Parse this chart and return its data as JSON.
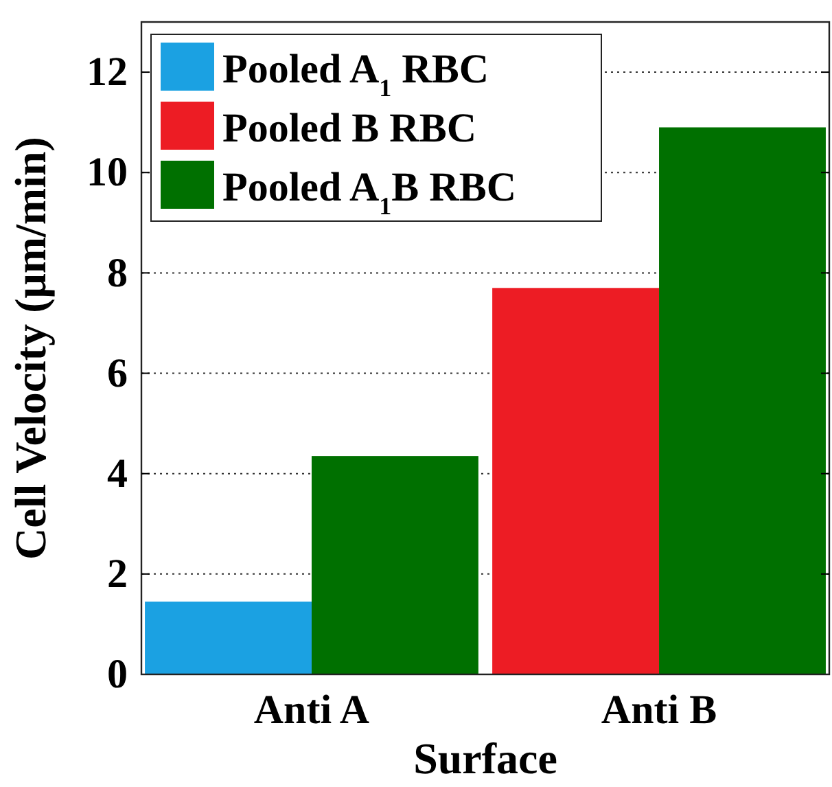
{
  "chart_data": {
    "type": "bar",
    "xlabel": "Surface",
    "ylabel": "Cell Velocity (μm/min)",
    "categories": [
      "Anti A",
      "Anti B"
    ],
    "series": [
      {
        "name": "Pooled A$_{1}$ RBC",
        "color": "#1ba1e2",
        "values": [
          1.45,
          null
        ]
      },
      {
        "name": "Pooled B RBC",
        "color": "#ed1c24",
        "values": [
          null,
          7.7
        ]
      },
      {
        "name": "Pooled A$_{1}$B RBC",
        "color": "#007000",
        "values": [
          4.35,
          10.9
        ]
      }
    ],
    "ylim": [
      0,
      13
    ],
    "yticks": [
      0,
      2,
      4,
      6,
      8,
      10,
      12
    ],
    "grid": "y",
    "legend": "top left"
  }
}
